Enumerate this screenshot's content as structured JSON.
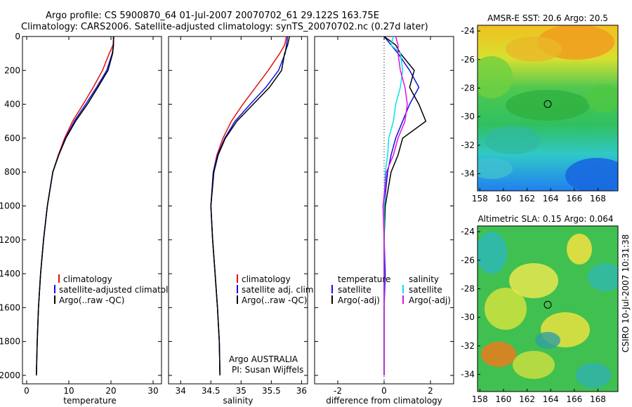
{
  "header": {
    "line1": "Argo profile: CS 5900870_64 01-Jul-2007 20070702_61 29.122S 163.75E",
    "line2": "Climatology: CARS2006. Satellite-adjusted climatology: synTS_20070702.nc (0.27d later)"
  },
  "side_label": "CSIRO 10-Jul-2007 10:31:38",
  "colors": {
    "climatology": "#e01010",
    "satellite": "#1010e0",
    "argo": "#000000",
    "satellite_sal": "#00e5e5",
    "argo_sal": "#e010e0"
  },
  "chart_data": [
    {
      "type": "line",
      "id": "temperature",
      "xlabel": "temperature",
      "ylabel": "",
      "xlim": [
        -1,
        32
      ],
      "ylim": [
        2050,
        0
      ],
      "xticks": [
        "0",
        "10",
        "20",
        "30"
      ],
      "xtick_values": [
        0,
        10,
        20,
        30
      ],
      "yticks": [
        "0",
        "200",
        "400",
        "600",
        "800",
        "1000",
        "1200",
        "1400",
        "1600",
        "1800",
        "2000"
      ],
      "ytick_values": [
        0,
        200,
        400,
        600,
        800,
        1000,
        1200,
        1400,
        1600,
        1800,
        2000
      ],
      "legend": [
        "climatology",
        "satellite-adjusted climatology",
        "Argo(..raw -QC)"
      ],
      "series": [
        {
          "name": "climatology",
          "color": "#e01010",
          "x": [
            20.7,
            20.5,
            19.6,
            18.0,
            15.8,
            13.4,
            10.9,
            9.0,
            7.5,
            6.2,
            4.9,
            4.0,
            3.3,
            2.8,
            2.5,
            2.3
          ],
          "y": [
            0,
            50,
            100,
            200,
            300,
            400,
            500,
            600,
            700,
            800,
            1000,
            1200,
            1400,
            1600,
            1800,
            2000
          ]
        },
        {
          "name": "satellite-adjusted climatology",
          "color": "#1010e0",
          "x": [
            20.6,
            20.6,
            20.3,
            19.0,
            16.6,
            14.0,
            11.3,
            9.2,
            7.6,
            6.2,
            4.9,
            4.0,
            3.3,
            2.8,
            2.5,
            2.3
          ],
          "y": [
            0,
            50,
            100,
            200,
            300,
            400,
            500,
            600,
            700,
            800,
            1000,
            1200,
            1400,
            1600,
            1800,
            2000
          ]
        },
        {
          "name": "Argo(..raw -QC)",
          "color": "#000000",
          "x": [
            20.6,
            20.6,
            20.4,
            19.3,
            16.9,
            14.4,
            11.6,
            9.3,
            7.6,
            6.2,
            4.9,
            4.0,
            3.3,
            2.8,
            2.5,
            2.3
          ],
          "y": [
            0,
            50,
            100,
            200,
            300,
            400,
            500,
            600,
            700,
            800,
            1000,
            1200,
            1400,
            1600,
            1800,
            2000
          ]
        }
      ]
    },
    {
      "type": "line",
      "id": "salinity",
      "xlabel": "salinity",
      "xlim": [
        33.8,
        36.1
      ],
      "ylim": [
        2050,
        0
      ],
      "xticks": [
        "34",
        "34.5",
        "35",
        "35.5",
        "36"
      ],
      "xtick_values": [
        34,
        34.5,
        35,
        35.5,
        36
      ],
      "legend": [
        "climatology",
        "satellite adj. clim.",
        "Argo(..raw -QC)"
      ],
      "annotation": [
        "Argo AUSTRALIA",
        "PI: Susan Wijffels"
      ],
      "series": [
        {
          "name": "climatology",
          "color": "#e01010",
          "x": [
            35.75,
            35.72,
            35.64,
            35.45,
            35.24,
            35.03,
            34.84,
            34.7,
            34.6,
            34.54,
            34.5,
            34.53,
            34.57,
            34.61,
            34.64,
            34.65
          ],
          "y": [
            0,
            50,
            100,
            200,
            300,
            400,
            500,
            600,
            700,
            800,
            1000,
            1200,
            1400,
            1600,
            1800,
            2000
          ]
        },
        {
          "name": "satellite adj. clim.",
          "color": "#1010e0",
          "x": [
            35.77,
            35.75,
            35.73,
            35.62,
            35.41,
            35.15,
            34.9,
            34.73,
            34.61,
            34.54,
            34.5,
            34.53,
            34.57,
            34.61,
            34.64,
            34.65
          ],
          "y": [
            0,
            50,
            100,
            200,
            300,
            400,
            500,
            600,
            700,
            800,
            1000,
            1200,
            1400,
            1600,
            1800,
            2000
          ]
        },
        {
          "name": "Argo(..raw -QC)",
          "color": "#000000",
          "x": [
            35.8,
            35.77,
            35.72,
            35.67,
            35.47,
            35.2,
            34.93,
            34.74,
            34.62,
            34.55,
            34.5,
            34.53,
            34.57,
            34.61,
            34.64,
            34.65
          ],
          "y": [
            0,
            50,
            100,
            200,
            300,
            400,
            500,
            600,
            700,
            800,
            1000,
            1200,
            1400,
            1600,
            1800,
            2000
          ]
        }
      ]
    },
    {
      "type": "line",
      "id": "difference",
      "xlabel": "difference from climatology",
      "xlim": [
        -3,
        3
      ],
      "ylim": [
        2050,
        0
      ],
      "xticks": [
        "-2",
        "0",
        "2"
      ],
      "xtick_values": [
        -2,
        0,
        2
      ],
      "legend": [
        "temperature",
        "satellite",
        "Argo(-adj)",
        "salinity",
        "satellite",
        "Argo(-adj)"
      ],
      "series": [
        {
          "name": "temperature satellite",
          "color": "#1010e0",
          "x": [
            0.0,
            0.3,
            0.6,
            1.1,
            1.5,
            1.1,
            0.8,
            0.5,
            0.3,
            0.15,
            0.0,
            0.0,
            0.05,
            0.0,
            0.0,
            0.0
          ],
          "y": [
            0,
            50,
            100,
            200,
            300,
            400,
            500,
            600,
            700,
            800,
            1000,
            1200,
            1400,
            1600,
            1800,
            2000
          ]
        },
        {
          "name": "temperature Argo(-adj)",
          "color": "#000000",
          "x": [
            0.0,
            0.5,
            0.7,
            1.3,
            1.1,
            1.5,
            1.8,
            0.8,
            0.6,
            0.3,
            0.05,
            0.0,
            0.0,
            0.0,
            0.0,
            0.0
          ],
          "y": [
            0,
            50,
            100,
            200,
            300,
            400,
            500,
            600,
            700,
            800,
            1000,
            1200,
            1400,
            1600,
            1800,
            2000
          ]
        },
        {
          "name": "salinity satellite",
          "color": "#00e5e5",
          "x": [
            0.4,
            0.3,
            0.7,
            0.8,
            0.7,
            0.5,
            0.4,
            0.2,
            0.15,
            0.05,
            0.0,
            0.0,
            0.0,
            0.0,
            0.0,
            0.0
          ],
          "y": [
            0,
            50,
            100,
            200,
            300,
            400,
            500,
            600,
            700,
            800,
            1000,
            1200,
            1400,
            1600,
            1800,
            2000
          ]
        },
        {
          "name": "salinity Argo(-adj)",
          "color": "#e010e0",
          "x": [
            0.5,
            0.6,
            0.6,
            0.7,
            0.9,
            1.0,
            0.9,
            0.6,
            0.4,
            0.1,
            -0.05,
            0.0,
            0.0,
            0.0,
            0.0,
            0.0
          ],
          "y": [
            0,
            50,
            100,
            200,
            300,
            400,
            500,
            600,
            700,
            800,
            1000,
            1200,
            1400,
            1600,
            1800,
            2000
          ]
        }
      ]
    },
    {
      "type": "heatmap",
      "id": "sst",
      "title": "AMSR-E SST: 20.6 Argo: 20.5",
      "xlim": [
        157.8,
        169.7
      ],
      "ylim": [
        -35.2,
        -23.6
      ],
      "xticks": [
        "158",
        "160",
        "162",
        "164",
        "166",
        "168"
      ],
      "xtick_values": [
        158,
        160,
        162,
        164,
        166,
        168
      ],
      "yticks": [
        "-24",
        "-26",
        "-28",
        "-30",
        "-32",
        "-34"
      ],
      "ytick_values": [
        -24,
        -26,
        -28,
        -30,
        -32,
        -34
      ],
      "marker": {
        "lon": 163.75,
        "lat": -29.12
      }
    },
    {
      "type": "heatmap",
      "id": "sla",
      "title": "Altimetric SLA: 0.15 Argo: 0.064",
      "xlim": [
        157.8,
        169.7
      ],
      "ylim": [
        -35.2,
        -23.6
      ],
      "xticks": [
        "158",
        "160",
        "162",
        "164",
        "166",
        "168"
      ],
      "xtick_values": [
        158,
        160,
        162,
        164,
        166,
        168
      ],
      "yticks": [
        "-24",
        "-26",
        "-28",
        "-30",
        "-32",
        "-34"
      ],
      "ytick_values": [
        -24,
        -26,
        -28,
        -30,
        -32,
        -34
      ],
      "marker": {
        "lon": 163.75,
        "lat": -29.12
      }
    }
  ]
}
